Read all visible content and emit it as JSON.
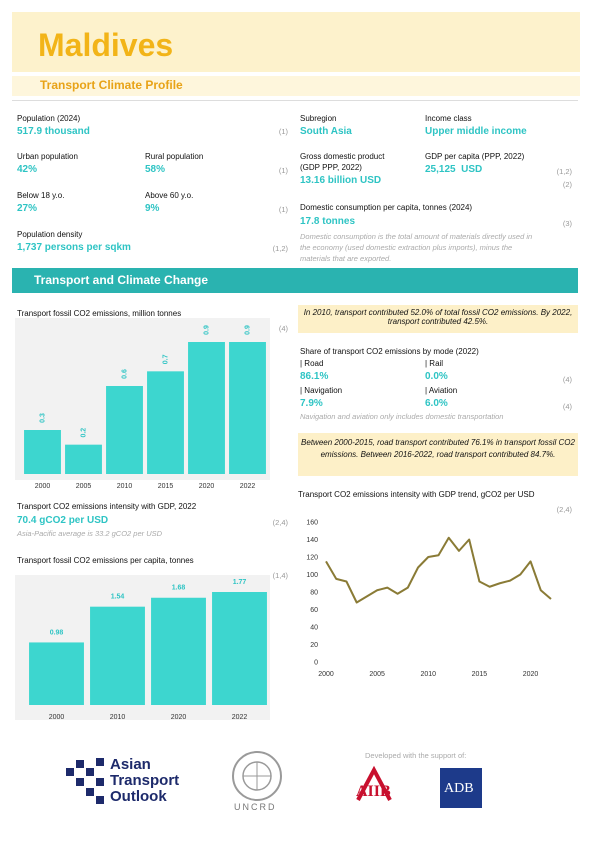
{
  "header": {
    "title": "Maldives",
    "subtitle": "Transport Climate Profile"
  },
  "profile": {
    "population": {
      "label": "Population (2024)",
      "value": "517.9 thousand",
      "source": "(1)"
    },
    "urban": {
      "label": "Urban population",
      "value": "42%"
    },
    "rural": {
      "label": "Rural population",
      "value": "58%"
    },
    "urban_rural_source": "(1)",
    "below_18": {
      "label": "Below 18 y.o.",
      "value": "27%"
    },
    "above_60": {
      "label": "Above 60 y.o.",
      "value": "9%"
    },
    "age_source": "(1)",
    "density": {
      "label": "Population density",
      "value": "1,737 persons per sqkm",
      "source": "(1,2)"
    },
    "subregion": {
      "label": "Subregion",
      "value": "South Asia"
    },
    "income": {
      "label": "Income class",
      "value": "Upper middle income"
    },
    "gdp": {
      "label": [
        "Gross domestic product",
        "(GDP PPP, 2022)"
      ],
      "value": "13.16 billion USD",
      "source": "(2)"
    },
    "gdp_per_capita": {
      "label": "GDP per capita (PPP, 2022)",
      "value": "25,125  USD",
      "source": "(1,2)"
    },
    "consumption": {
      "label": "Domestic consumption per capita, tonnes (2024)",
      "value": "17.8 tonnes",
      "source": "(3)",
      "note": "Domestic consumption is the total amount of materials directly used in the economy (used domestic extraction plus imports), minus the materials that are exported."
    }
  },
  "section_title": "Transport and Climate Change",
  "fossil_emissions_chart": {
    "type": "bar",
    "title": "Transport fossil CO2 emissions, million tonnes",
    "source": "(4)",
    "categories": [
      "2000",
      "2005",
      "2010",
      "2015",
      "2020",
      "2022"
    ],
    "values": [
      0.3,
      0.2,
      0.6,
      0.7,
      0.9,
      0.9
    ],
    "color": "#3dd6cf"
  },
  "intensity": {
    "title": "Transport CO2 emissions intensity with GDP, 2022",
    "value": "70.4 gCO2 per USD",
    "source": "(2,4)",
    "note": "Asia-Pacific average is 33.2 gCO2 per USD"
  },
  "per_capita_chart": {
    "type": "bar",
    "title": "Transport fossil CO2 emissions per capita, tonnes",
    "source": "(1,4)",
    "categories": [
      "2000",
      "2010",
      "2020",
      "2022"
    ],
    "values": [
      0.98,
      1.54,
      1.68,
      1.77
    ],
    "color": "#3dd6cf"
  },
  "callout_1": "In 2010, transport contributed 52.0% of total fossil CO2 emissions. By 2022, transport contributed 42.5%.",
  "mode_share": {
    "title": "Share of transport CO2 emissions by mode (2022)",
    "road": {
      "label": "| Road",
      "value": "86.1%"
    },
    "rail": {
      "label": "| Rail",
      "value": "0.0%"
    },
    "navigation": {
      "label": "| Navigation",
      "value": "7.9%"
    },
    "aviation": {
      "label": "| Aviation",
      "value": "6.0%"
    },
    "sources": [
      "(4)",
      "(4)"
    ],
    "note": "Navigation and aviation only includes domestic transportation"
  },
  "callout_2": "Between 2000-2015, road transport contributed 76.1% in transport fossil CO2 emissions. Between 2016-2022, road transport contributed 84.7%.",
  "intensity_trend_chart": {
    "type": "line",
    "title": "Transport CO2 emissions intensity with GDP trend, gCO2 per USD",
    "source": "(2,4)",
    "x": [
      2000,
      2001,
      2002,
      2003,
      2004,
      2005,
      2006,
      2007,
      2008,
      2009,
      2010,
      2011,
      2012,
      2013,
      2014,
      2015,
      2016,
      2017,
      2018,
      2019,
      2020,
      2021,
      2022
    ],
    "values": [
      115,
      95,
      92,
      68,
      75,
      82,
      85,
      78,
      85,
      108,
      120,
      122,
      142,
      127,
      140,
      92,
      86,
      90,
      93,
      100,
      115,
      82,
      72
    ],
    "color": "#8a7b36",
    "xlim": [
      2000,
      2022
    ],
    "xticks": [
      2000,
      2005,
      2010,
      2015,
      2020
    ],
    "ylim": [
      0,
      160
    ],
    "yticks": [
      0,
      20,
      40,
      60,
      80,
      100,
      120,
      140,
      160
    ]
  },
  "footer": {
    "ato": [
      "Asian",
      "Transport",
      "Outlook"
    ],
    "uncrd": "UNCRD",
    "support": "Developed with the support of:",
    "aiib": "AIIB",
    "adb": "ADB"
  }
}
